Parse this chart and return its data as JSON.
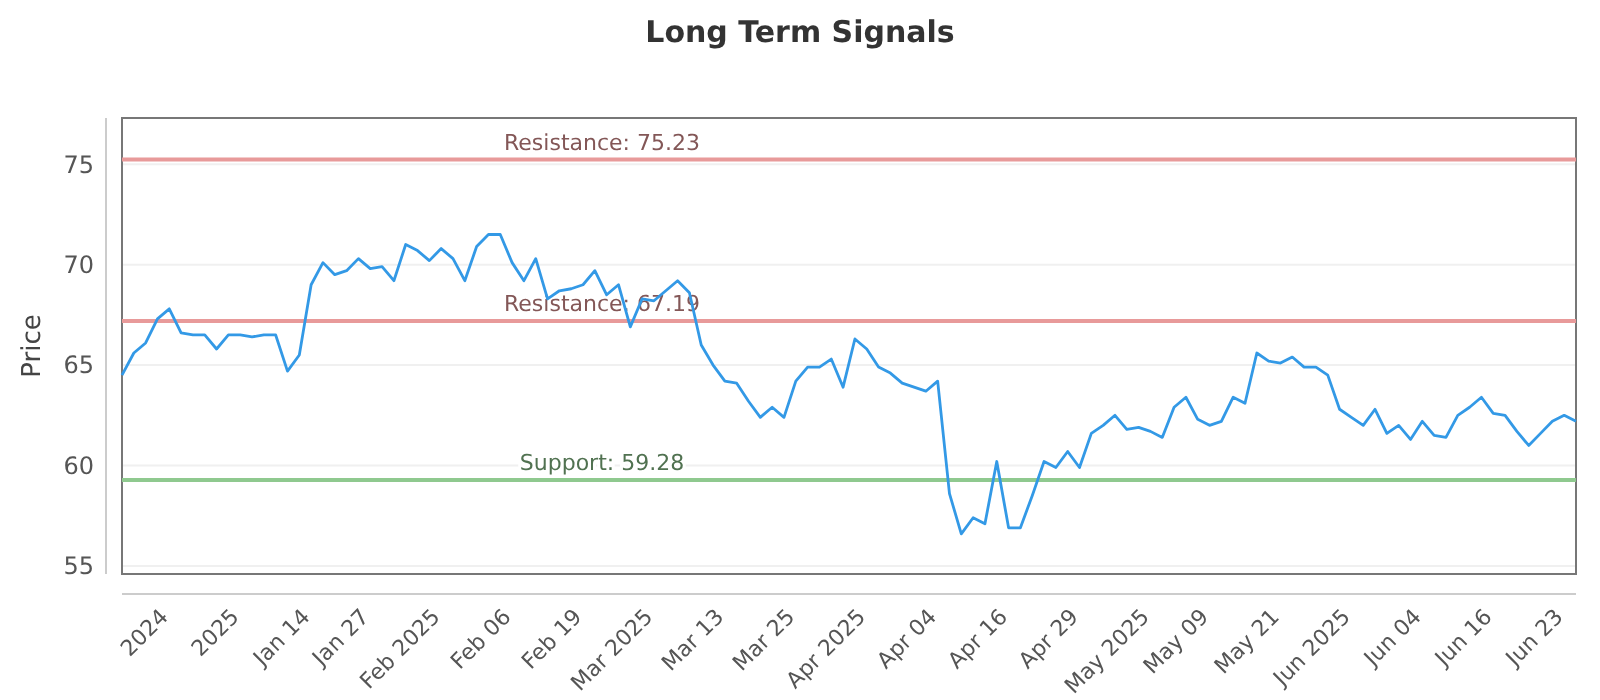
{
  "chart_data": {
    "type": "line",
    "title": "Long Term Signals",
    "ylabel": "Price",
    "categories": [
      null,
      null,
      null,
      null,
      "2024",
      null,
      null,
      null,
      null,
      null,
      "2025",
      null,
      null,
      null,
      null,
      null,
      "Jan 14",
      null,
      null,
      null,
      null,
      "Jan 27",
      null,
      null,
      null,
      null,
      null,
      "Feb 2025",
      null,
      null,
      null,
      null,
      null,
      "Feb 06",
      null,
      null,
      null,
      null,
      null,
      "Feb 19",
      null,
      null,
      null,
      null,
      null,
      "Mar 2025",
      null,
      null,
      null,
      null,
      null,
      "Mar 13",
      null,
      null,
      null,
      null,
      null,
      "Mar 25",
      null,
      null,
      null,
      null,
      null,
      "Apr 2025",
      null,
      null,
      null,
      null,
      null,
      "Apr 04",
      null,
      null,
      null,
      null,
      null,
      "Apr 16",
      null,
      null,
      null,
      null,
      null,
      "Apr 29",
      null,
      null,
      null,
      null,
      null,
      "May 2025",
      null,
      null,
      null,
      null,
      "May 09",
      null,
      null,
      null,
      null,
      null,
      "May 21",
      null,
      null,
      null,
      null,
      null,
      "Jun 2025",
      null,
      null,
      null,
      null,
      null,
      "Jun 04",
      null,
      null,
      null,
      null,
      null,
      "Jun 16",
      null,
      null,
      null,
      null,
      null,
      "Jun 23",
      null
    ],
    "series": [
      {
        "color": "#3399e6",
        "values": [
          64.5,
          65.6,
          66.1,
          67.3,
          67.8,
          66.6,
          66.5,
          66.5,
          65.8,
          66.5,
          66.5,
          66.4,
          66.5,
          66.5,
          64.7,
          65.5,
          69.0,
          70.1,
          69.5,
          69.7,
          70.3,
          69.8,
          69.9,
          69.2,
          71.0,
          70.7,
          70.2,
          70.8,
          70.3,
          69.2,
          70.9,
          71.5,
          71.5,
          70.1,
          69.2,
          70.3,
          68.3,
          68.7,
          68.8,
          69.0,
          69.7,
          68.5,
          69.0,
          66.9,
          68.3,
          68.2,
          68.7,
          69.2,
          68.6,
          66.0,
          65.0,
          64.2,
          64.1,
          63.2,
          62.4,
          62.9,
          62.4,
          64.2,
          64.9,
          64.9,
          65.3,
          63.9,
          66.3,
          65.8,
          64.9,
          64.6,
          64.1,
          63.9,
          63.7,
          64.2,
          58.6,
          56.6,
          57.4,
          57.1,
          60.2,
          56.9,
          56.9,
          58.5,
          60.2,
          59.9,
          60.7,
          59.9,
          61.6,
          62.0,
          62.5,
          61.8,
          61.9,
          61.7,
          61.4,
          62.9,
          63.4,
          62.3,
          62.0,
          62.2,
          63.4,
          63.1,
          65.6,
          65.2,
          65.1,
          65.4,
          64.9,
          64.9,
          64.5,
          62.8,
          62.4,
          62.0,
          62.8,
          61.6,
          62.0,
          61.3,
          62.2,
          61.5,
          61.4,
          62.5,
          62.9,
          63.4,
          62.6,
          62.5,
          61.7,
          61.0,
          61.6,
          62.2,
          62.5,
          62.2
        ]
      }
    ],
    "ylim": [
      54.6,
      77.3
    ],
    "yticks": [
      55,
      60,
      65,
      70,
      75
    ],
    "grid": "y",
    "marker": "none",
    "line_style": "solid",
    "ref_lines": [
      {
        "axis": "y",
        "value": 75.23,
        "label": "Resistance: 75.23",
        "color": "#e89a9a"
      },
      {
        "axis": "y",
        "value": 67.19,
        "label": "Resistance: 67.19",
        "color": "#e89a9a"
      },
      {
        "axis": "y",
        "value": 59.28,
        "label": "Support: 59.28",
        "color": "#8fc98f"
      }
    ]
  }
}
